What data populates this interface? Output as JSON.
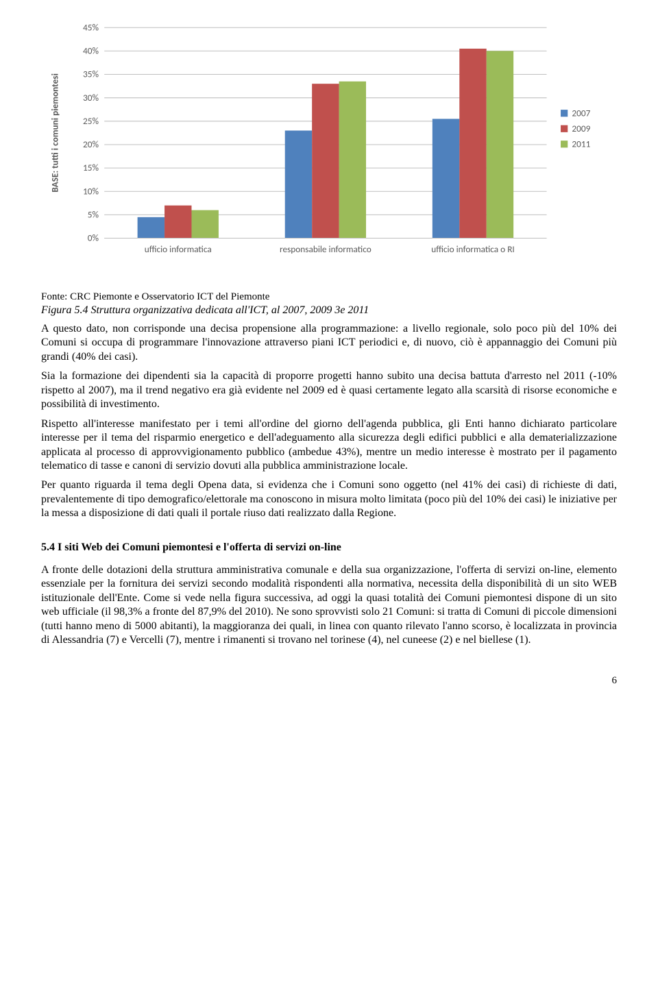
{
  "chart": {
    "type": "bar",
    "y_axis_label": "BASE: tutti i comuni piemontesi",
    "y_ticks": [
      "0%",
      "5%",
      "10%",
      "15%",
      "20%",
      "25%",
      "30%",
      "35%",
      "40%",
      "45%"
    ],
    "y_max": 45,
    "y_tick_step": 5,
    "categories": [
      "ufficio informatica",
      "responsabile informatico",
      "ufficio informatica o RI"
    ],
    "series": [
      {
        "name": "2007",
        "color": "#4f81bd",
        "values": [
          4.5,
          23,
          25.5
        ]
      },
      {
        "name": "2009",
        "color": "#c0504d",
        "values": [
          7,
          33,
          40.5
        ]
      },
      {
        "name": "2011",
        "color": "#9bbb59",
        "values": [
          6,
          33.5,
          40
        ]
      }
    ],
    "grid_color": "#bfbfbf",
    "background_color": "#ffffff",
    "axis_font_size": 13,
    "y_label_font_size": 13,
    "legend_font_size": 13,
    "legend_box_size": 10
  },
  "source_line": "Fonte: CRC Piemonte e Osservatorio ICT del Piemonte",
  "figure_caption": "Figura 5.4  Struttura organizzativa dedicata all'ICT, al 2007, 2009 3e 2011",
  "paragraphs": [
    "A questo dato, non corrisponde una decisa propensione alla programmazione: a livello regionale, solo poco più del 10% dei Comuni si occupa di programmare l'innovazione attraverso piani ICT periodici e, di nuovo, ciò è appannaggio dei Comuni più grandi (40% dei casi).",
    "Sia la formazione dei dipendenti sia la capacità di proporre progetti hanno subito una decisa battuta d'arresto nel 2011 (-10% rispetto al 2007), ma il trend negativo era già evidente nel 2009 ed è quasi certamente legato alla scarsità di risorse economiche e possibilità di investimento.",
    "Rispetto all'interesse manifestato per i temi all'ordine del giorno dell'agenda pubblica, gli Enti hanno dichiarato particolare interesse per il tema del risparmio energetico e dell'adeguamento alla sicurezza degli edifici pubblici e alla dematerializzazione applicata al processo di approvvigionamento pubblico (ambedue 43%), mentre un medio interesse è mostrato per il pagamento telematico di tasse e canoni di servizio dovuti alla pubblica amministrazione locale.",
    "Per quanto riguarda il tema degli Opena data, si evidenza che i Comuni sono oggetto (nel 41% dei casi) di richieste di dati, prevalentemente di tipo demografico/elettorale ma conoscono in misura molto limitata (poco più del 10% dei casi) le iniziative per la messa a disposizione di dati quali il portale riuso dati realizzato dalla Regione."
  ],
  "section_heading": "5.4 I siti Web dei Comuni piemontesi e l'offerta di servizi on-line",
  "section_paragraph": "A fronte delle dotazioni della struttura amministrativa comunale e della sua organizzazione, l'offerta di servizi on-line, elemento essenziale per la fornitura dei servizi secondo modalità rispondenti alla normativa, necessita della disponibilità di un sito WEB istituzionale dell'Ente. Come si vede nella figura successiva, ad oggi la quasi totalità dei Comuni piemontesi dispone di un sito web ufficiale (il 98,3% a fronte del 87,9%  del 2010). Ne sono sprovvisti solo 21 Comuni: si tratta di Comuni di piccole dimensioni (tutti hanno meno di 5000 abitanti), la maggioranza dei quali, in linea con quanto rilevato l'anno scorso, è localizzata in provincia di Alessandria (7) e Vercelli (7), mentre i rimanenti si trovano nel torinese (4), nel cuneese (2) e nel biellese (1).",
  "page_number": "6"
}
